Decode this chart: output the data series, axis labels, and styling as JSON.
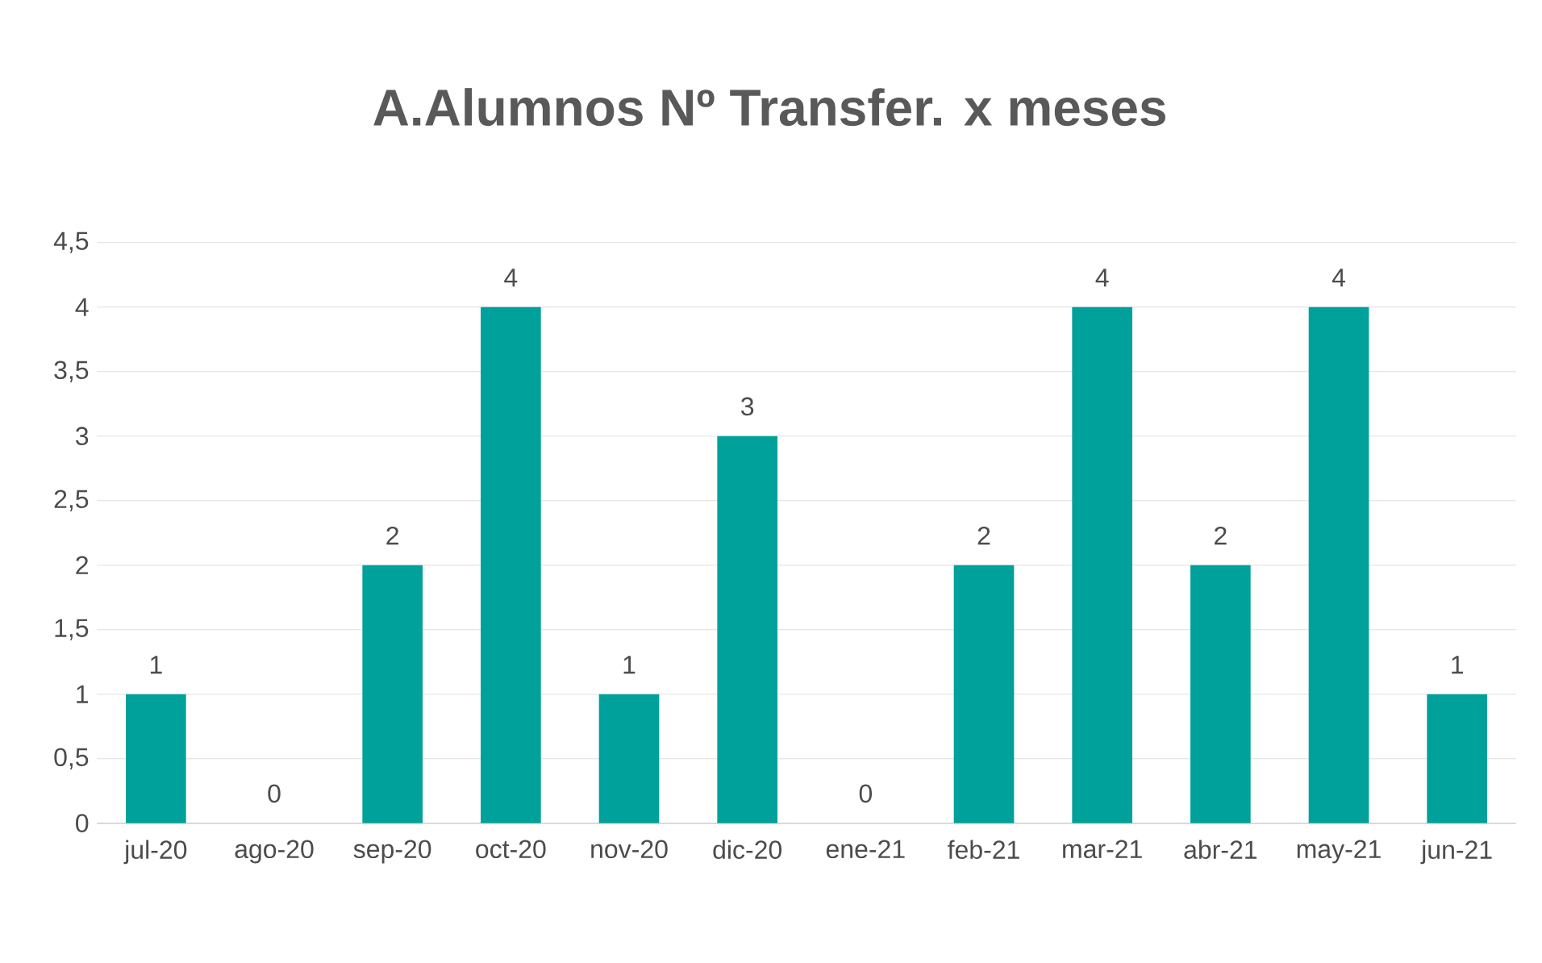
{
  "chart_data": {
    "type": "bar",
    "title": "A.Alumnos Nº Transfer.  x  meses",
    "categories": [
      "jul-20",
      "ago-20",
      "sep-20",
      "oct-20",
      "nov-20",
      "dic-20",
      "ene-21",
      "feb-21",
      "mar-21",
      "abr-21",
      "may-21",
      "jun-21"
    ],
    "values": [
      1,
      0,
      2,
      4,
      1,
      3,
      0,
      2,
      4,
      2,
      4,
      1
    ],
    "color": "#00a19a",
    "ylim": [
      0,
      4.5
    ],
    "yticks": [
      0,
      {
        "value": 0.5,
        "label": "0,5"
      },
      1,
      {
        "value": 1.5,
        "label": "1,5"
      },
      2,
      {
        "value": 2.5,
        "label": "2,5"
      },
      3,
      {
        "value": 3.5,
        "label": "3,5"
      },
      4,
      {
        "value": 4.5,
        "label": "4,5"
      }
    ],
    "grid": "y",
    "data_labels": true
  }
}
